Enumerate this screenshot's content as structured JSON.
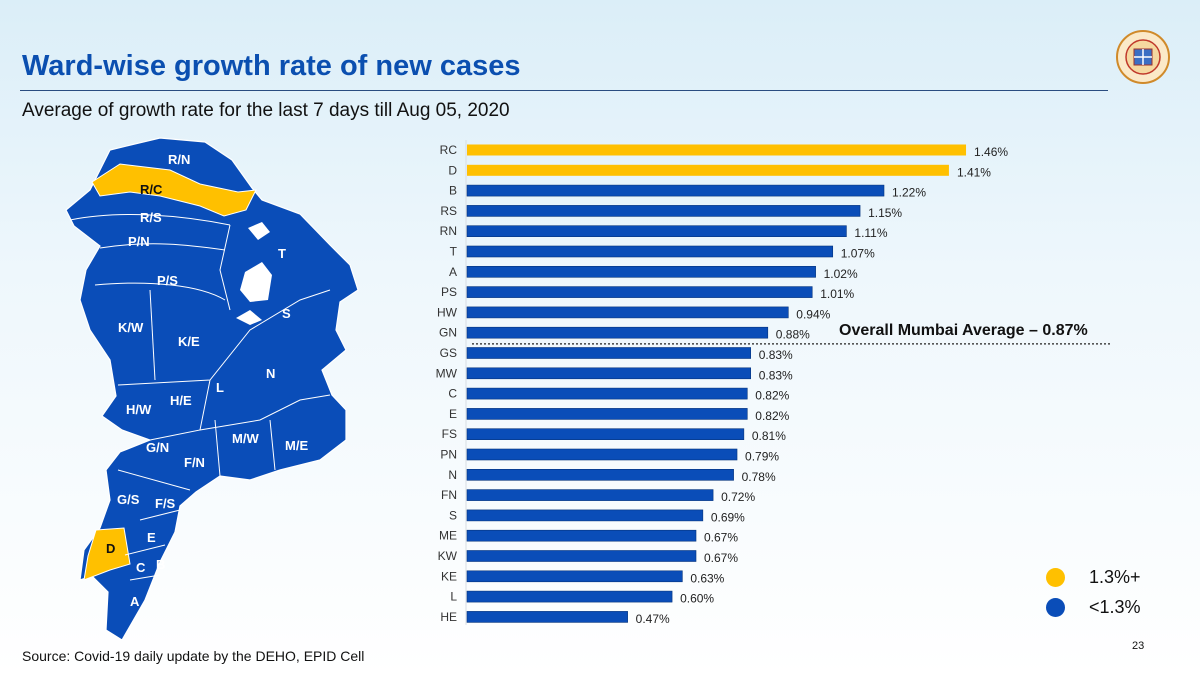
{
  "title": "Ward-wise growth rate of new cases",
  "subtitle": "Average of growth rate for the last 7 days till Aug 05, 2020",
  "source": "Source: Covid-19 daily update by the DEHO, EPID Cell",
  "page_number": "23",
  "colors": {
    "high": "#FFC000",
    "low": "#0A4DB8",
    "title": "#0B4FB0"
  },
  "legend": [
    {
      "label": "1.3%+",
      "color": "#FFC000"
    },
    {
      "label": "<1.3%",
      "color": "#0A4DB8"
    }
  ],
  "map_labels": [
    "R/N",
    "R/C",
    "R/S",
    "P/N",
    "P/S",
    "T",
    "S",
    "K/W",
    "K/E",
    "N",
    "L",
    "H/E",
    "H/W",
    "M/W",
    "M/E",
    "G/N",
    "F/N",
    "G/S",
    "F/S",
    "E",
    "D",
    "C",
    "B",
    "A"
  ],
  "chart_data": {
    "type": "bar",
    "orientation": "horizontal",
    "categories": [
      "RC",
      "D",
      "B",
      "RS",
      "RN",
      "T",
      "A",
      "PS",
      "HW",
      "GN",
      "GS",
      "MW",
      "C",
      "E",
      "FS",
      "PN",
      "N",
      "FN",
      "S",
      "ME",
      "KW",
      "KE",
      "L",
      "HE"
    ],
    "values": [
      1.46,
      1.41,
      1.22,
      1.15,
      1.11,
      1.07,
      1.02,
      1.01,
      0.94,
      0.88,
      0.83,
      0.83,
      0.82,
      0.82,
      0.81,
      0.79,
      0.78,
      0.72,
      0.69,
      0.67,
      0.67,
      0.63,
      0.6,
      0.47
    ],
    "value_labels": [
      "1.46%",
      "1.41%",
      "1.22%",
      "1.15%",
      "1.11%",
      "1.07%",
      "1.02%",
      "1.01%",
      "0.94%",
      "0.88%",
      "0.83%",
      "0.83%",
      "0.82%",
      "0.82%",
      "0.81%",
      "0.79%",
      "0.78%",
      "0.72%",
      "0.69%",
      "0.67%",
      "0.67%",
      "0.63%",
      "0.60%",
      "0.47%"
    ],
    "threshold": 1.3,
    "reference_line": {
      "value": 0.87,
      "label": "Overall Mumbai Average – 0.87%"
    },
    "grid": false
  }
}
